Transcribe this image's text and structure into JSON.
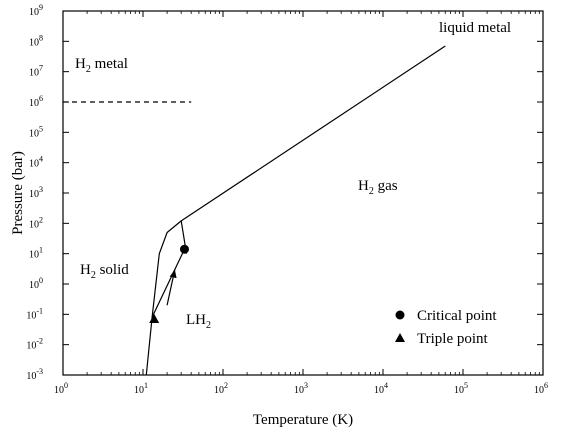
{
  "chart_data": {
    "type": "line",
    "title": "",
    "xlabel": "Temperature (K)",
    "ylabel": "Pressure (bar)",
    "x_scale": "log",
    "y_scale": "log",
    "xlim": [
      1,
      1000000
    ],
    "ylim": [
      0.001,
      1000000000
    ],
    "x_ticks": [
      {
        "value": 1,
        "base": "10",
        "exp": "0"
      },
      {
        "value": 10,
        "base": "10",
        "exp": "1"
      },
      {
        "value": 100,
        "base": "10",
        "exp": "2"
      },
      {
        "value": 1000,
        "base": "10",
        "exp": "3"
      },
      {
        "value": 10000,
        "base": "10",
        "exp": "4"
      },
      {
        "value": 100000,
        "base": "10",
        "exp": "5"
      },
      {
        "value": 1000000,
        "base": "10",
        "exp": "6"
      }
    ],
    "y_ticks": [
      {
        "value": 0.001,
        "base": "10",
        "exp": "-3"
      },
      {
        "value": 0.01,
        "base": "10",
        "exp": "-2"
      },
      {
        "value": 0.1,
        "base": "10",
        "exp": "-1"
      },
      {
        "value": 1,
        "base": "10",
        "exp": "0"
      },
      {
        "value": 10,
        "base": "10",
        "exp": "1"
      },
      {
        "value": 100,
        "base": "10",
        "exp": "2"
      },
      {
        "value": 1000,
        "base": "10",
        "exp": "3"
      },
      {
        "value": 10000,
        "base": "10",
        "exp": "4"
      },
      {
        "value": 100000,
        "base": "10",
        "exp": "5"
      },
      {
        "value": 1000000,
        "base": "10",
        "exp": "6"
      },
      {
        "value": 10000000,
        "base": "10",
        "exp": "7"
      },
      {
        "value": 100000000,
        "base": "10",
        "exp": "8"
      },
      {
        "value": 1000000000,
        "base": "10",
        "exp": "9"
      }
    ],
    "series": [
      {
        "key": "melting-curve",
        "style": "solid",
        "points": [
          [
            11,
            0.001
          ],
          [
            13,
            0.08
          ],
          [
            16,
            10
          ],
          [
            20,
            50
          ],
          [
            30,
            120
          ]
        ]
      },
      {
        "key": "vapor-curve",
        "style": "solid",
        "points": [
          [
            13,
            0.08
          ],
          [
            33,
            14
          ]
        ]
      },
      {
        "key": "gas-liquid-metal-boundary",
        "style": "solid",
        "points": [
          [
            30,
            120
          ],
          [
            60000,
            70000000
          ]
        ]
      },
      {
        "key": "solid-boundary-upper",
        "style": "solid",
        "points": [
          [
            30,
            120
          ],
          [
            35,
            10
          ]
        ]
      },
      {
        "key": "metal-transition",
        "style": "dashed",
        "points": [
          [
            1,
            1000000
          ],
          [
            40,
            1000000
          ]
        ]
      }
    ],
    "markers": [
      {
        "key": "critical-point",
        "shape": "circle",
        "x": 33,
        "y": 14
      },
      {
        "key": "triple-point",
        "shape": "triangle",
        "x": 13.8,
        "y": 0.07
      }
    ],
    "arrow": {
      "from": [
        20,
        0.2
      ],
      "to": [
        25,
        3
      ]
    },
    "annotations": {
      "liquid_metal": "liquid metal",
      "h2_metal": {
        "pre": "H",
        "sub": "2",
        "post": " metal"
      },
      "h2_gas": {
        "pre": "H",
        "sub": "2",
        "post": " gas"
      },
      "h2_solid": {
        "pre": "H",
        "sub": "2",
        "post": " solid"
      },
      "lh2": {
        "pre": "LH",
        "sub": "2",
        "post": ""
      }
    },
    "legend": {
      "placement": "bottom-right",
      "entries": [
        {
          "shape": "circle",
          "label": "Critical point"
        },
        {
          "shape": "triangle",
          "label": "Triple point"
        }
      ]
    },
    "grid": false
  }
}
